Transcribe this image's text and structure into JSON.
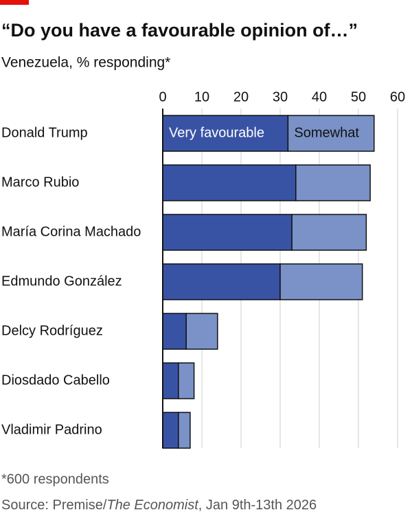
{
  "chart_data": {
    "type": "stacked-barh",
    "title": "“Do you have a favourable opinion of…”",
    "subtitle": "Venezuela, % responding*",
    "categories": [
      "Donald Trump",
      "Marco Rubio",
      "María Corina Machado",
      "Edmundo González",
      "Delcy Rodríguez",
      "Diosdado Cabello",
      "Vladimir Padrino"
    ],
    "series": [
      {
        "name": "Very favourable",
        "color": "#3953a4",
        "values": [
          32,
          34,
          33,
          30,
          6,
          4,
          4
        ]
      },
      {
        "name": "Somewhat",
        "color": "#7a92c7",
        "values": [
          22,
          19,
          19,
          21,
          8,
          4,
          3
        ]
      }
    ],
    "xlim": [
      0,
      60
    ],
    "xticks": [
      0,
      10,
      20,
      30,
      40,
      50,
      60
    ],
    "grid": true,
    "footnote": "*600 respondents",
    "source": [
      "Source: Premise/",
      "The Economist",
      ", Jan 9th-13th 2026"
    ]
  }
}
